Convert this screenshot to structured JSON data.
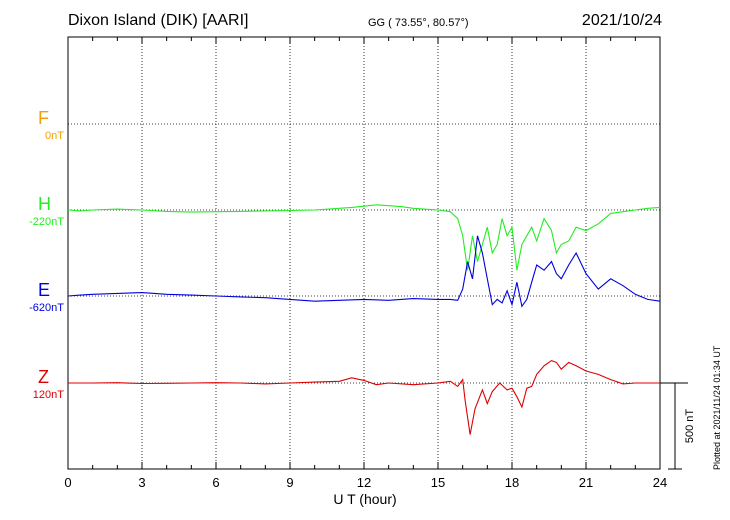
{
  "header": {
    "title": "Dixon Island (DIK)  [AARI]",
    "coords": "GG ( 73.55°,  80.57°)",
    "date": "2021/10/24"
  },
  "plotted_text": "Plotted at 2021/11/24 01:34 UT",
  "chart_data": {
    "type": "line",
    "xlabel": "U T (hour)",
    "x_ticks": [
      "0",
      "3",
      "6",
      "9",
      "12",
      "15",
      "18",
      "21",
      "24"
    ],
    "xlim": [
      0,
      24
    ],
    "scale_bar": {
      "label": "500 nT",
      "value_nT": 500
    },
    "colors": {
      "F": "#f0a000",
      "H": "#22ee22",
      "E": "#0000dd",
      "Z": "#dd0000"
    },
    "series": [
      {
        "name": "F",
        "offset_label": "0nT",
        "points": []
      },
      {
        "name": "H",
        "offset_label": "-220nT",
        "points": [
          [
            0,
            0
          ],
          [
            0.5,
            -5
          ],
          [
            1,
            0
          ],
          [
            2,
            5
          ],
          [
            3,
            0
          ],
          [
            4,
            -8
          ],
          [
            5,
            -12
          ],
          [
            6,
            -10
          ],
          [
            7,
            -8
          ],
          [
            8,
            -5
          ],
          [
            9,
            -3
          ],
          [
            10,
            0
          ],
          [
            11,
            10
          ],
          [
            11.5,
            15
          ],
          [
            12,
            22
          ],
          [
            12.5,
            30
          ],
          [
            13,
            25
          ],
          [
            13.5,
            20
          ],
          [
            14,
            10
          ],
          [
            15,
            0
          ],
          [
            15.5,
            -10
          ],
          [
            15.8,
            -50
          ],
          [
            16,
            -150
          ],
          [
            16.2,
            -350
          ],
          [
            16.4,
            -150
          ],
          [
            16.6,
            -300
          ],
          [
            16.8,
            -200
          ],
          [
            17,
            -100
          ],
          [
            17.2,
            -250
          ],
          [
            17.4,
            -200
          ],
          [
            17.6,
            -50
          ],
          [
            17.8,
            -150
          ],
          [
            18,
            -100
          ],
          [
            18.2,
            -350
          ],
          [
            18.4,
            -200
          ],
          [
            18.6,
            -150
          ],
          [
            18.8,
            -100
          ],
          [
            19,
            -180
          ],
          [
            19.3,
            -50
          ],
          [
            19.6,
            -120
          ],
          [
            19.8,
            -250
          ],
          [
            20,
            -200
          ],
          [
            20.3,
            -180
          ],
          [
            20.6,
            -100
          ],
          [
            21,
            -120
          ],
          [
            21.5,
            -80
          ],
          [
            22,
            -20
          ],
          [
            22.5,
            -10
          ],
          [
            23,
            0
          ],
          [
            23.5,
            10
          ],
          [
            24,
            15
          ]
        ]
      },
      {
        "name": "E",
        "offset_label": "-620nT",
        "points": [
          [
            0,
            0
          ],
          [
            0.5,
            5
          ],
          [
            1,
            10
          ],
          [
            2,
            15
          ],
          [
            3,
            20
          ],
          [
            4,
            10
          ],
          [
            5,
            5
          ],
          [
            6,
            0
          ],
          [
            7,
            -5
          ],
          [
            8,
            -10
          ],
          [
            9,
            -20
          ],
          [
            10,
            -30
          ],
          [
            11,
            -25
          ],
          [
            12,
            -20
          ],
          [
            13,
            -25
          ],
          [
            14,
            -15
          ],
          [
            15,
            -20
          ],
          [
            15.5,
            -20
          ],
          [
            15.8,
            -25
          ],
          [
            16,
            40
          ],
          [
            16.2,
            200
          ],
          [
            16.4,
            100
          ],
          [
            16.6,
            350
          ],
          [
            16.8,
            250
          ],
          [
            17,
            100
          ],
          [
            17.2,
            -50
          ],
          [
            17.4,
            -20
          ],
          [
            17.6,
            -40
          ],
          [
            17.8,
            30
          ],
          [
            18,
            -50
          ],
          [
            18.2,
            80
          ],
          [
            18.4,
            -60
          ],
          [
            18.6,
            -20
          ],
          [
            18.8,
            80
          ],
          [
            19,
            180
          ],
          [
            19.3,
            150
          ],
          [
            19.6,
            200
          ],
          [
            19.8,
            130
          ],
          [
            20,
            100
          ],
          [
            20.3,
            180
          ],
          [
            20.6,
            250
          ],
          [
            21,
            130
          ],
          [
            21.5,
            40
          ],
          [
            22,
            100
          ],
          [
            22.5,
            60
          ],
          [
            23,
            10
          ],
          [
            23.5,
            -20
          ],
          [
            24,
            -30
          ]
        ]
      },
      {
        "name": "Z",
        "offset_label": "120nT",
        "points": [
          [
            0,
            0
          ],
          [
            1,
            0
          ],
          [
            2,
            2
          ],
          [
            3,
            -3
          ],
          [
            4,
            -2
          ],
          [
            5,
            0
          ],
          [
            6,
            2
          ],
          [
            7,
            0
          ],
          [
            8,
            -5
          ],
          [
            9,
            0
          ],
          [
            10,
            5
          ],
          [
            11,
            10
          ],
          [
            11.5,
            30
          ],
          [
            12,
            15
          ],
          [
            12.5,
            -10
          ],
          [
            13,
            0
          ],
          [
            14,
            -10
          ],
          [
            15,
            0
          ],
          [
            15.5,
            10
          ],
          [
            15.8,
            -20
          ],
          [
            16,
            20
          ],
          [
            16.1,
            -100
          ],
          [
            16.3,
            -300
          ],
          [
            16.5,
            -150
          ],
          [
            16.8,
            -40
          ],
          [
            17,
            -120
          ],
          [
            17.2,
            -50
          ],
          [
            17.5,
            0
          ],
          [
            17.8,
            -40
          ],
          [
            18,
            -30
          ],
          [
            18.2,
            -80
          ],
          [
            18.4,
            -140
          ],
          [
            18.6,
            -30
          ],
          [
            18.8,
            -20
          ],
          [
            19,
            50
          ],
          [
            19.3,
            100
          ],
          [
            19.6,
            130
          ],
          [
            19.8,
            120
          ],
          [
            20,
            80
          ],
          [
            20.3,
            120
          ],
          [
            20.6,
            100
          ],
          [
            21,
            70
          ],
          [
            21.5,
            50
          ],
          [
            22,
            20
          ],
          [
            22.5,
            -5
          ],
          [
            23,
            0
          ],
          [
            24,
            0
          ]
        ]
      }
    ]
  }
}
